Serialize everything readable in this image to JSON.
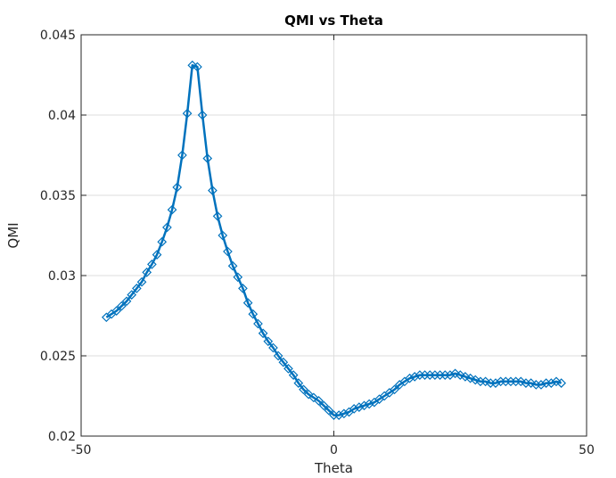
{
  "colors": {
    "series": "#0072bd",
    "axis": "#262626",
    "grid": "#dedede",
    "background": "#ffffff"
  },
  "chart_data": {
    "type": "line",
    "title": "QMI vs Theta",
    "xlabel": "Theta",
    "ylabel": "QMI",
    "xlim": [
      -50,
      50
    ],
    "ylim": [
      0.02,
      0.045
    ],
    "xticks": [
      -50,
      0,
      50
    ],
    "xtick_labels": [
      "-50",
      "0",
      "50"
    ],
    "yticks": [
      0.02,
      0.025,
      0.03,
      0.035,
      0.04,
      0.045
    ],
    "ytick_labels": [
      "0.02",
      "0.025",
      "0.03",
      "0.035",
      "0.04",
      "0.045"
    ],
    "grid": true,
    "marker": "diamond",
    "series": [
      {
        "name": "QMI",
        "x": [
          -45,
          -44,
          -43,
          -42,
          -41,
          -40,
          -39,
          -38,
          -37,
          -36,
          -35,
          -34,
          -33,
          -32,
          -31,
          -30,
          -29,
          -28,
          -27,
          -26,
          -25,
          -24,
          -23,
          -22,
          -21,
          -20,
          -19,
          -18,
          -17,
          -16,
          -15,
          -14,
          -13,
          -12,
          -11,
          -10,
          -9,
          -8,
          -7,
          -6,
          -5,
          -4,
          -3,
          -2,
          -1,
          0,
          1,
          2,
          3,
          4,
          5,
          6,
          7,
          8,
          9,
          10,
          11,
          12,
          13,
          14,
          15,
          16,
          17,
          18,
          19,
          20,
          21,
          22,
          23,
          24,
          25,
          26,
          27,
          28,
          29,
          30,
          31,
          32,
          33,
          34,
          35,
          36,
          37,
          38,
          39,
          40,
          41,
          42,
          43,
          44,
          45
        ],
        "values": [
          0.0274,
          0.0276,
          0.0278,
          0.0281,
          0.0284,
          0.0288,
          0.0292,
          0.0296,
          0.0302,
          0.0307,
          0.0313,
          0.0321,
          0.033,
          0.0341,
          0.0355,
          0.0375,
          0.0401,
          0.0431,
          0.043,
          0.04,
          0.0373,
          0.0353,
          0.0337,
          0.0325,
          0.0315,
          0.0306,
          0.0299,
          0.0292,
          0.0283,
          0.0276,
          0.027,
          0.0264,
          0.0259,
          0.0255,
          0.025,
          0.0246,
          0.0242,
          0.0238,
          0.0233,
          0.0229,
          0.0226,
          0.0224,
          0.0222,
          0.0219,
          0.0216,
          0.0213,
          0.0213,
          0.0214,
          0.0215,
          0.0217,
          0.0218,
          0.0219,
          0.022,
          0.0221,
          0.0223,
          0.0225,
          0.0227,
          0.0229,
          0.0232,
          0.0234,
          0.0236,
          0.0237,
          0.0238,
          0.0238,
          0.0238,
          0.0238,
          0.0238,
          0.0238,
          0.0238,
          0.0239,
          0.0238,
          0.0237,
          0.0236,
          0.0235,
          0.0234,
          0.0234,
          0.0233,
          0.0233,
          0.0234,
          0.0234,
          0.0234,
          0.0234,
          0.0234,
          0.0233,
          0.0233,
          0.0232,
          0.0232,
          0.0233,
          0.0233,
          0.0234,
          0.0233
        ]
      }
    ]
  }
}
